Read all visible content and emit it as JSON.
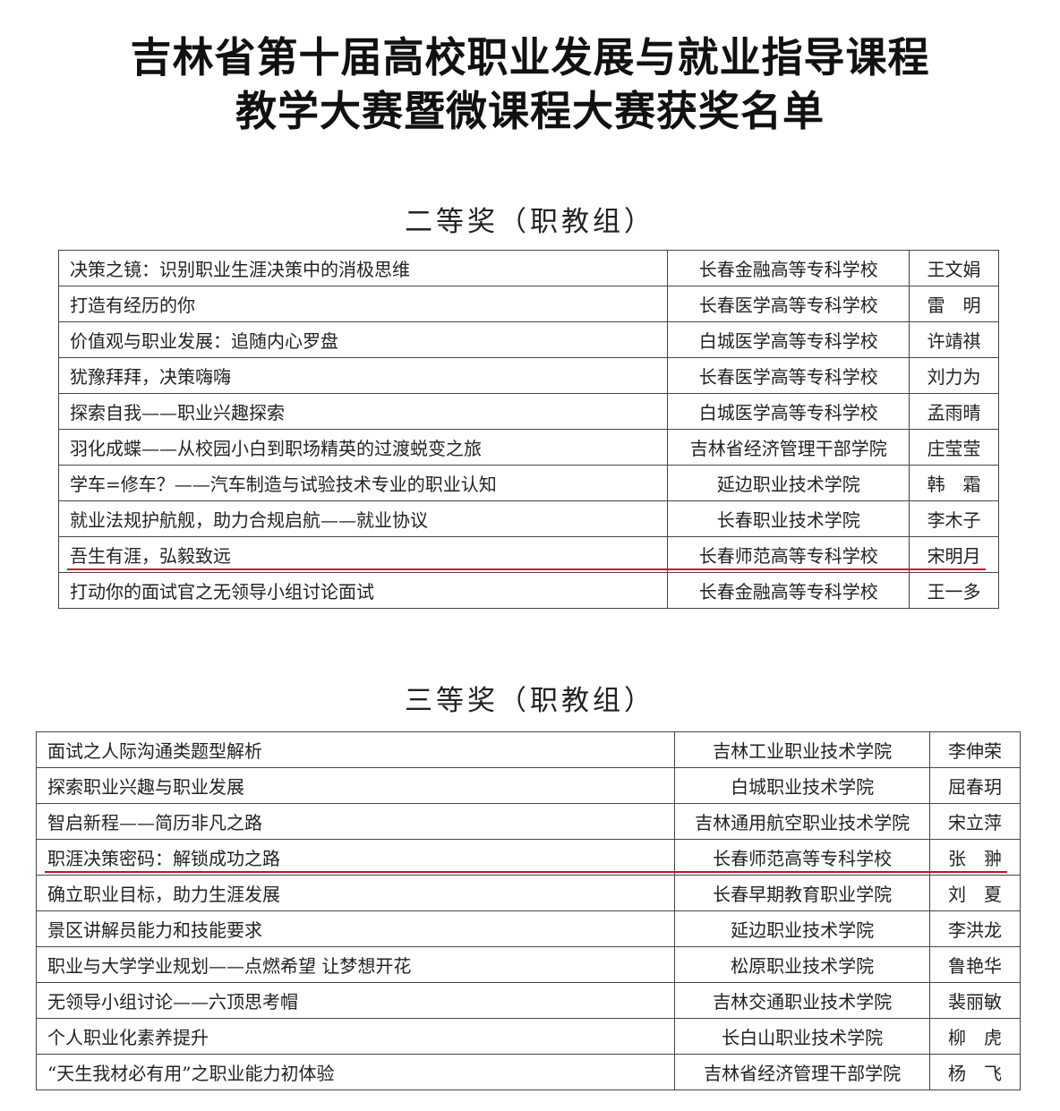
{
  "title": {
    "line1": "吉林省第十届高校职业发展与就业指导课程",
    "line2": "教学大赛暨微课程大赛获奖名单"
  },
  "sections": [
    {
      "heading": "二等奖（职教组）",
      "highlight_row": 8,
      "rows": [
        {
          "title": "决策之镜：识别职业生涯决策中的消极思维",
          "school": "长春金融高等专科学校",
          "name": "王文娟"
        },
        {
          "title": "打造有经历的你",
          "school": "长春医学高等专科学校",
          "name": "雷　明"
        },
        {
          "title": "价值观与职业发展：追随内心罗盘",
          "school": "白城医学高等专科学校",
          "name": "许靖祺"
        },
        {
          "title": "犹豫拜拜，决策嗨嗨",
          "school": "长春医学高等专科学校",
          "name": "刘力为"
        },
        {
          "title": "探索自我——职业兴趣探索",
          "school": "白城医学高等专科学校",
          "name": "孟雨晴"
        },
        {
          "title": "羽化成蝶——从校园小白到职场精英的过渡蜕变之旅",
          "school": "吉林省经济管理干部学院",
          "name": "庄莹莹"
        },
        {
          "title": "学车=修车？——汽车制造与试验技术专业的职业认知",
          "school": "延边职业技术学院",
          "name": "韩　霜"
        },
        {
          "title": "就业法规护航舰，助力合规启航——就业协议",
          "school": "长春职业技术学院",
          "name": "李木子"
        },
        {
          "title": "吾生有涯，弘毅致远",
          "school": "长春师范高等专科学校",
          "name": "宋明月"
        },
        {
          "title": "打动你的面试官之无领导小组讨论面试",
          "school": "长春金融高等专科学校",
          "name": "王一多"
        }
      ]
    },
    {
      "heading": "三等奖（职教组）",
      "highlight_row": 3,
      "rows": [
        {
          "title": "面试之人际沟通类题型解析",
          "school": "吉林工业职业技术学院",
          "name": "李伸荣"
        },
        {
          "title": "探索职业兴趣与职业发展",
          "school": "白城职业技术学院",
          "name": "屈春玥"
        },
        {
          "title": "智启新程——简历非凡之路",
          "school": "吉林通用航空职业技术学院",
          "name": "宋立萍"
        },
        {
          "title": "职涯决策密码：解锁成功之路",
          "school": "长春师范高等专科学校",
          "name": "张　翀"
        },
        {
          "title": "确立职业目标，助力生涯发展",
          "school": "长春早期教育职业学院",
          "name": "刘　夏"
        },
        {
          "title": "景区讲解员能力和技能要求",
          "school": "延边职业技术学院",
          "name": "李洪龙"
        },
        {
          "title": "职业与大学学业规划——点燃希望  让梦想开花",
          "school": "松原职业技术学院",
          "name": "鲁艳华"
        },
        {
          "title": "无领导小组讨论——六顶思考帽",
          "school": "吉林交通职业技术学院",
          "name": "裴丽敏"
        },
        {
          "title": "个人职业化素养提升",
          "school": "长白山职业技术学院",
          "name": "柳　虎"
        },
        {
          "title": "“天生我材必有用”之职业能力初体验",
          "school": "吉林省经济管理干部学院",
          "name": "杨　飞"
        }
      ]
    }
  ],
  "colors": {
    "highlight_underline": "#c8102e",
    "border": "#444444"
  }
}
